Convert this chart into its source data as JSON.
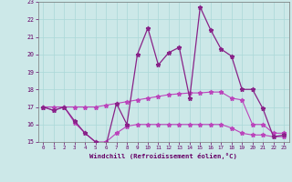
{
  "xlabel": "Windchill (Refroidissement éolien,°C)",
  "background_color": "#cce8e8",
  "line_color_main": "#882288",
  "line_color_upper": "#bb44bb",
  "line_color_lower": "#bb44bb",
  "x": [
    0,
    1,
    2,
    3,
    4,
    5,
    6,
    7,
    8,
    9,
    10,
    11,
    12,
    13,
    14,
    15,
    16,
    17,
    18,
    19,
    20,
    21,
    22,
    23
  ],
  "y_main": [
    17.0,
    16.8,
    17.0,
    16.2,
    15.5,
    15.0,
    14.8,
    17.2,
    16.0,
    20.0,
    21.5,
    19.4,
    20.1,
    20.4,
    17.5,
    22.7,
    21.4,
    20.3,
    19.9,
    18.0,
    18.0,
    16.9,
    15.3,
    15.4
  ],
  "y_upper": [
    17.0,
    17.0,
    17.0,
    17.0,
    17.0,
    17.0,
    17.1,
    17.2,
    17.3,
    17.4,
    17.5,
    17.6,
    17.7,
    17.75,
    17.8,
    17.8,
    17.85,
    17.85,
    17.5,
    17.4,
    16.0,
    16.0,
    15.5,
    15.5
  ],
  "y_lower": [
    17.0,
    16.8,
    17.0,
    16.1,
    15.5,
    15.0,
    15.0,
    15.5,
    15.9,
    16.0,
    16.0,
    16.0,
    16.0,
    16.0,
    16.0,
    16.0,
    16.0,
    16.0,
    15.8,
    15.5,
    15.4,
    15.4,
    15.3,
    15.3
  ],
  "ylim": [
    15,
    23
  ],
  "xlim": [
    -0.5,
    23.5
  ],
  "yticks": [
    15,
    16,
    17,
    18,
    19,
    20,
    21,
    22,
    23
  ],
  "xticks": [
    0,
    1,
    2,
    3,
    4,
    5,
    6,
    7,
    8,
    9,
    10,
    11,
    12,
    13,
    14,
    15,
    16,
    17,
    18,
    19,
    20,
    21,
    22,
    23
  ],
  "grid_color": "#aad8d8",
  "tick_color": "#660066",
  "label_color": "#660066",
  "marker": "*",
  "markersize": 3.5,
  "linewidth_main": 0.9,
  "linewidth_band": 0.8
}
